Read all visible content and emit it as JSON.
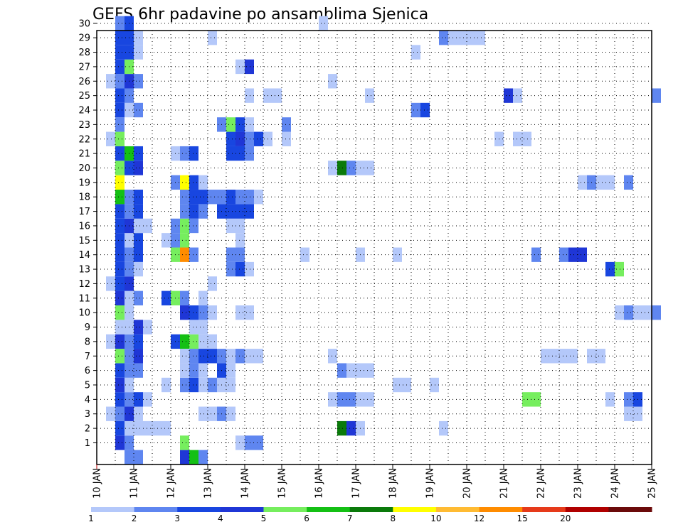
{
  "chart_data": {
    "type": "heatmap",
    "title": "GEFS 6hr padavine po ansamblima Sjenica",
    "xlabel": "",
    "ylabel": "",
    "x_ticks": [
      "10 JAN",
      "11 JAN",
      "12 JAN",
      "13 JAN",
      "14 JAN",
      "15 JAN",
      "16 JAN",
      "17 JAN",
      "18 JAN",
      "19 JAN",
      "20 JAN",
      "21 JAN",
      "22 JAN",
      "23 JAN",
      "24 JAN",
      "25 JAN"
    ],
    "xlim": [
      "10 JAN 00Z",
      "25 JAN 00Z"
    ],
    "time_step_hours": 6,
    "y_ticks": [
      1,
      2,
      3,
      4,
      5,
      6,
      7,
      8,
      9,
      10,
      11,
      12,
      13,
      14,
      15,
      16,
      17,
      18,
      19,
      20,
      21,
      22,
      23,
      24,
      25,
      26,
      27,
      28,
      29,
      30
    ],
    "ylim": [
      0,
      30
    ],
    "grid": "dotted",
    "legend": {
      "placement": "bottom",
      "levels": [
        1,
        2,
        3,
        4,
        5,
        6,
        7,
        8,
        10,
        12,
        15,
        20
      ],
      "colors": [
        "#b4c8fa",
        "#5f86f0",
        "#1846e0",
        "#1f36d6",
        "#76ee5e",
        "#14c014",
        "#0a7a0a",
        "#ffff00",
        "#ffbb33",
        "#ff8c00",
        "#e63a1a",
        "#b00000",
        "#6b0a0a"
      ]
    },
    "cell_values_mm": {
      "note_rows_are_member_numbers": true,
      "rows": {
        "30": [
          [
            2,
            2
          ],
          [
            3,
            3.5
          ],
          [
            24,
            1.5
          ]
        ],
        "29": [
          [
            2,
            3.5
          ],
          [
            3,
            3.5
          ],
          [
            4,
            1.5
          ],
          [
            12,
            1.5
          ],
          [
            37,
            2
          ],
          [
            38,
            1.5
          ],
          [
            39,
            1.5
          ],
          [
            40,
            1.5
          ],
          [
            41,
            1.5
          ]
        ],
        "28": [
          [
            2,
            3.5
          ],
          [
            3,
            3.5
          ],
          [
            4,
            1.5
          ],
          [
            34,
            1.5
          ]
        ],
        "27": [
          [
            2,
            3.5
          ],
          [
            3,
            5.5
          ],
          [
            15,
            1.5
          ],
          [
            16,
            4.5
          ]
        ],
        "26": [
          [
            1,
            1.5
          ],
          [
            2,
            2
          ],
          [
            3,
            4.5
          ],
          [
            4,
            2
          ],
          [
            25,
            1.5
          ]
        ],
        "25": [
          [
            2,
            3.5
          ],
          [
            3,
            2
          ],
          [
            16,
            1.5
          ],
          [
            18,
            1.5
          ],
          [
            19,
            1.5
          ],
          [
            29,
            1.5
          ],
          [
            44,
            4.5
          ],
          [
            45,
            1.5
          ],
          [
            60,
            2
          ]
        ],
        "24": [
          [
            2,
            3.5
          ],
          [
            3,
            1.5
          ],
          [
            4,
            2
          ],
          [
            34,
            2
          ],
          [
            35,
            3.5
          ]
        ],
        "23": [
          [
            2,
            2
          ],
          [
            13,
            2
          ],
          [
            14,
            5.5
          ],
          [
            15,
            3.5
          ],
          [
            16,
            1.5
          ],
          [
            20,
            2
          ]
        ],
        "22": [
          [
            1,
            1.5
          ],
          [
            2,
            5.5
          ],
          [
            14,
            3.5
          ],
          [
            15,
            4.5
          ],
          [
            16,
            2
          ],
          [
            17,
            3.5
          ],
          [
            18,
            1.5
          ],
          [
            20,
            1.5
          ],
          [
            43,
            1.5
          ],
          [
            45,
            1.5
          ],
          [
            46,
            1.5
          ]
        ],
        "21": [
          [
            2,
            3.5
          ],
          [
            3,
            6.5
          ],
          [
            4,
            3.5
          ],
          [
            8,
            1.5
          ],
          [
            9,
            2
          ],
          [
            10,
            3.5
          ],
          [
            14,
            3.5
          ],
          [
            15,
            3.5
          ],
          [
            16,
            2
          ]
        ],
        "20": [
          [
            2,
            5.5
          ],
          [
            3,
            3.5
          ],
          [
            4,
            4.5
          ],
          [
            25,
            1.5
          ],
          [
            26,
            7
          ],
          [
            27,
            2
          ],
          [
            28,
            1.5
          ],
          [
            29,
            1.5
          ]
        ],
        "19": [
          [
            2,
            9
          ],
          [
            8,
            2
          ],
          [
            9,
            9
          ],
          [
            10,
            3.5
          ],
          [
            11,
            1.5
          ],
          [
            52,
            1.5
          ],
          [
            53,
            2
          ],
          [
            54,
            1.5
          ],
          [
            55,
            1.5
          ],
          [
            57,
            2
          ]
        ],
        "18": [
          [
            2,
            6.5
          ],
          [
            3,
            2
          ],
          [
            4,
            3.5
          ],
          [
            9,
            2
          ],
          [
            10,
            3.5
          ],
          [
            11,
            3.5
          ],
          [
            12,
            2
          ],
          [
            13,
            2
          ],
          [
            14,
            3.5
          ],
          [
            15,
            2
          ],
          [
            16,
            2
          ],
          [
            17,
            1.5
          ]
        ],
        "17": [
          [
            2,
            3.5
          ],
          [
            3,
            2
          ],
          [
            4,
            3.5
          ],
          [
            9,
            2
          ],
          [
            10,
            3.5
          ],
          [
            11,
            2
          ],
          [
            13,
            3.5
          ],
          [
            14,
            3.5
          ],
          [
            15,
            3.5
          ],
          [
            16,
            3.5
          ]
        ],
        "16": [
          [
            2,
            3.5
          ],
          [
            3,
            4.5
          ],
          [
            4,
            1.5
          ],
          [
            5,
            1.5
          ],
          [
            8,
            2
          ],
          [
            9,
            5.5
          ],
          [
            10,
            2
          ],
          [
            14,
            1.5
          ],
          [
            15,
            1.5
          ]
        ],
        "15": [
          [
            2,
            3.5
          ],
          [
            3,
            1.5
          ],
          [
            4,
            3.5
          ],
          [
            7,
            1.5
          ],
          [
            8,
            2
          ],
          [
            9,
            5.5
          ],
          [
            15,
            1.5
          ]
        ],
        "14": [
          [
            2,
            3.5
          ],
          [
            3,
            2
          ],
          [
            4,
            3.5
          ],
          [
            8,
            5.5
          ],
          [
            9,
            14
          ],
          [
            10,
            2
          ],
          [
            14,
            2
          ],
          [
            15,
            2
          ],
          [
            22,
            1.5
          ],
          [
            28,
            1.5
          ],
          [
            32,
            1.5
          ],
          [
            47,
            2
          ],
          [
            50,
            2
          ],
          [
            51,
            4.5
          ],
          [
            52,
            4.5
          ]
        ],
        "13": [
          [
            2,
            3.5
          ],
          [
            3,
            2
          ],
          [
            4,
            1.5
          ],
          [
            14,
            2
          ],
          [
            15,
            3.5
          ],
          [
            16,
            1.5
          ],
          [
            55,
            3.5
          ],
          [
            56,
            5.5
          ]
        ],
        "12": [
          [
            1,
            1.5
          ],
          [
            2,
            3.5
          ],
          [
            3,
            4.5
          ],
          [
            12,
            1.5
          ]
        ],
        "11": [
          [
            2,
            4.5
          ],
          [
            3,
            1.5
          ],
          [
            4,
            2
          ],
          [
            7,
            3.5
          ],
          [
            8,
            5.5
          ],
          [
            9,
            2
          ],
          [
            11,
            1.5
          ]
        ],
        "10": [
          [
            2,
            5.5
          ],
          [
            3,
            1.5
          ],
          [
            9,
            4.5
          ],
          [
            10,
            3.5
          ],
          [
            11,
            2
          ],
          [
            12,
            1.5
          ],
          [
            15,
            1.5
          ],
          [
            16,
            1.5
          ],
          [
            56,
            1.5
          ],
          [
            57,
            2
          ],
          [
            58,
            1.5
          ],
          [
            59,
            1.5
          ],
          [
            60,
            2
          ]
        ],
        "9": [
          [
            2,
            1.5
          ],
          [
            3,
            1.5
          ],
          [
            4,
            4.5
          ],
          [
            5,
            1.5
          ],
          [
            10,
            1.5
          ],
          [
            11,
            1.5
          ]
        ],
        "8": [
          [
            1,
            1.5
          ],
          [
            2,
            4.5
          ],
          [
            3,
            2
          ],
          [
            4,
            3.5
          ],
          [
            8,
            3.5
          ],
          [
            9,
            6.5
          ],
          [
            10,
            5.5
          ],
          [
            11,
            1.5
          ],
          [
            12,
            1.5
          ]
        ],
        "7": [
          [
            2,
            5.5
          ],
          [
            3,
            2
          ],
          [
            4,
            4.5
          ],
          [
            9,
            1.5
          ],
          [
            10,
            2
          ],
          [
            11,
            3.5
          ],
          [
            12,
            3.5
          ],
          [
            13,
            2
          ],
          [
            14,
            1.5
          ],
          [
            15,
            2
          ],
          [
            16,
            1.5
          ],
          [
            17,
            1.5
          ],
          [
            25,
            1.5
          ],
          [
            48,
            1.5
          ],
          [
            49,
            1.5
          ],
          [
            50,
            1.5
          ],
          [
            51,
            1.5
          ],
          [
            53,
            1.5
          ],
          [
            54,
            1.5
          ]
        ],
        "6": [
          [
            2,
            3.5
          ],
          [
            3,
            2
          ],
          [
            4,
            2
          ],
          [
            9,
            1.5
          ],
          [
            10,
            2
          ],
          [
            11,
            1.5
          ],
          [
            13,
            3.5
          ],
          [
            14,
            1.5
          ],
          [
            26,
            2
          ],
          [
            27,
            1.5
          ],
          [
            28,
            1.5
          ],
          [
            29,
            1.5
          ]
        ],
        "5": [
          [
            2,
            4.5
          ],
          [
            3,
            1.5
          ],
          [
            7,
            1.5
          ],
          [
            9,
            2
          ],
          [
            10,
            3.5
          ],
          [
            11,
            1.5
          ],
          [
            12,
            2
          ],
          [
            13,
            1.5
          ],
          [
            14,
            1.5
          ],
          [
            32,
            1.5
          ],
          [
            33,
            1.5
          ],
          [
            36,
            1.5
          ]
        ],
        "4": [
          [
            2,
            3.5
          ],
          [
            3,
            2
          ],
          [
            4,
            3.5
          ],
          [
            5,
            1.5
          ],
          [
            25,
            1.5
          ],
          [
            26,
            2
          ],
          [
            27,
            2
          ],
          [
            28,
            1.5
          ],
          [
            29,
            1.5
          ],
          [
            46,
            5.5
          ],
          [
            47,
            5.5
          ],
          [
            55,
            1.5
          ],
          [
            57,
            2
          ],
          [
            58,
            3.5
          ]
        ],
        "3": [
          [
            1,
            1.5
          ],
          [
            2,
            2
          ],
          [
            3,
            4.5
          ],
          [
            4,
            1.5
          ],
          [
            11,
            1.5
          ],
          [
            12,
            1.5
          ],
          [
            13,
            2
          ],
          [
            14,
            1.5
          ],
          [
            57,
            1.5
          ],
          [
            58,
            1.5
          ]
        ],
        "2": [
          [
            2,
            3.5
          ],
          [
            3,
            1.5
          ],
          [
            4,
            1.5
          ],
          [
            5,
            1.5
          ],
          [
            6,
            1.5
          ],
          [
            7,
            1.5
          ],
          [
            26,
            7
          ],
          [
            27,
            4.5
          ],
          [
            28,
            1.5
          ],
          [
            37,
            1.5
          ]
        ],
        "1": [
          [
            2,
            4.5
          ],
          [
            3,
            2
          ],
          [
            9,
            5.5
          ],
          [
            15,
            1.5
          ],
          [
            16,
            2
          ],
          [
            17,
            2
          ]
        ],
        "0": [
          [
            3,
            2
          ],
          [
            4,
            2
          ],
          [
            9,
            4.5
          ],
          [
            10,
            6.5
          ],
          [
            11,
            2
          ]
        ]
      }
    }
  }
}
